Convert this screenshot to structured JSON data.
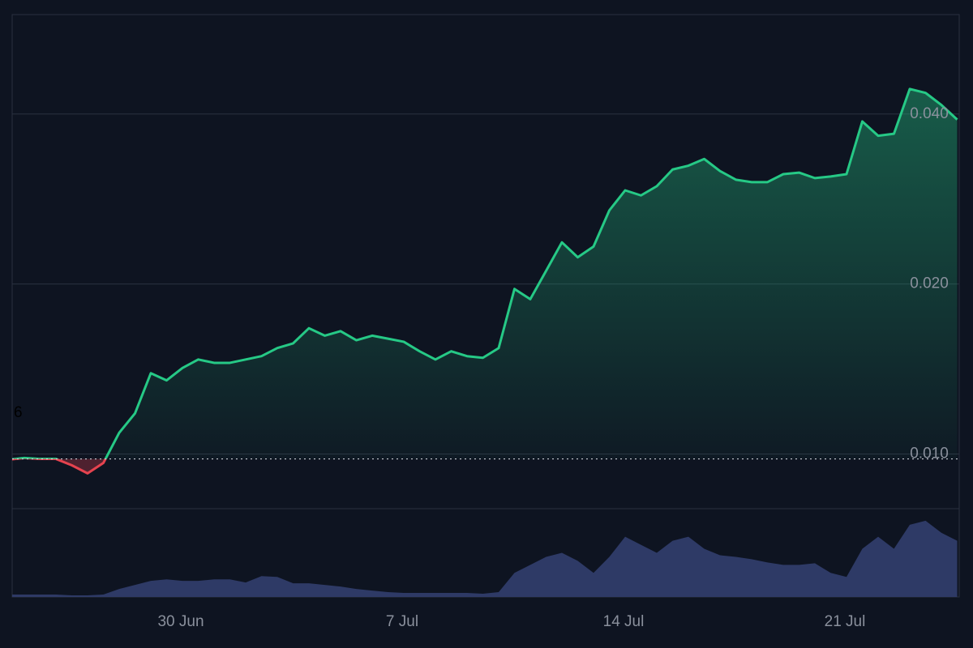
{
  "chart_data": {
    "type": "line",
    "log_scale": true,
    "categories": [
      null,
      null,
      null,
      null,
      null,
      null,
      null,
      null,
      null,
      null,
      null,
      "30 Jun",
      null,
      null,
      null,
      null,
      null,
      null,
      null,
      null,
      null,
      null,
      null,
      null,
      null,
      "7 Jul",
      null,
      null,
      null,
      null,
      null,
      null,
      null,
      null,
      null,
      null,
      null,
      null,
      null,
      "14 Jul",
      null,
      null,
      null,
      null,
      null,
      null,
      null,
      null,
      null,
      null,
      null,
      null,
      null,
      "21 Jul",
      null,
      null,
      null,
      null,
      null,
      null,
      null
    ],
    "values": [
      0.00977,
      0.00984,
      0.0098,
      0.0098,
      0.00955,
      0.00924,
      0.00964,
      0.0109,
      0.0118,
      0.0139,
      0.0135,
      0.0142,
      0.0147,
      0.0145,
      0.0145,
      0.0147,
      0.0149,
      0.0154,
      0.0157,
      0.0167,
      0.0162,
      0.0165,
      0.0159,
      0.0162,
      0.016,
      0.0158,
      0.0152,
      0.0147,
      0.0152,
      0.0149,
      0.0148,
      0.0154,
      0.0196,
      0.0188,
      0.0211,
      0.0237,
      0.0223,
      0.0233,
      0.027,
      0.0293,
      0.0287,
      0.0298,
      0.0319,
      0.0324,
      0.0333,
      0.0317,
      0.0306,
      0.0303,
      0.0303,
      0.0313,
      0.0315,
      0.0308,
      0.031,
      0.0313,
      0.0388,
      0.0366,
      0.0369,
      0.0443,
      0.0436,
      0.0415,
      0.0391
    ],
    "color": "#26c986",
    "down_color": "#e5434f",
    "baseline": 0.0098,
    "ylim": [
      0.008,
      0.06
    ],
    "yticks": [
      {
        "value": 0.01,
        "label": "0.010"
      },
      {
        "value": 0.02,
        "label": "0.020"
      },
      {
        "value": 0.04,
        "label": "0.040"
      }
    ],
    "grid": true,
    "annotation": "6",
    "volume": {
      "color": "#2e3a66",
      "ylim": [
        0,
        110
      ],
      "values": [
        3,
        3,
        3,
        3,
        2,
        2,
        3,
        10,
        15,
        20,
        22,
        20,
        20,
        22,
        22,
        18,
        26,
        25,
        17,
        17,
        15,
        13,
        10,
        8,
        6,
        5,
        5,
        5,
        5,
        5,
        4,
        6,
        30,
        40,
        50,
        55,
        45,
        30,
        50,
        75,
        65,
        55,
        70,
        75,
        60,
        52,
        50,
        47,
        43,
        40,
        40,
        42,
        30,
        25,
        60,
        75,
        60,
        90,
        95,
        80,
        70
      ]
    }
  }
}
